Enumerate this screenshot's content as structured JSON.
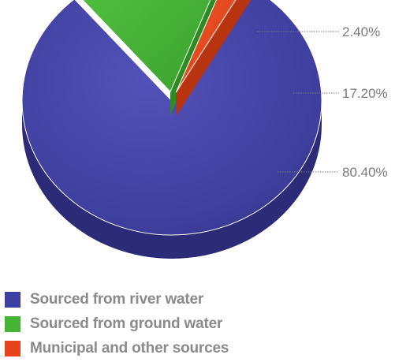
{
  "chart_data": {
    "type": "pie",
    "style": "3d",
    "slices": [
      {
        "name": "Sourced from river water",
        "value": 80.4,
        "label": "80.40%",
        "color": "#3f3f9f",
        "exploded": false
      },
      {
        "name": "Sourced from ground water",
        "value": 17.2,
        "label": "17.20%",
        "color": "#45b435",
        "exploded": true
      },
      {
        "name": "Municipal and other sources",
        "value": 2.4,
        "label": "2.40%",
        "color": "#e8441b",
        "exploded": true
      }
    ],
    "legend_placement": "bottom-left"
  },
  "legend": {
    "items": [
      {
        "label": "Sourced from river water",
        "color": "#3f3f9f"
      },
      {
        "label": "Sourced from ground water",
        "color": "#45b435"
      },
      {
        "label": "Municipal and other sources",
        "color": "#e8441b"
      }
    ]
  }
}
